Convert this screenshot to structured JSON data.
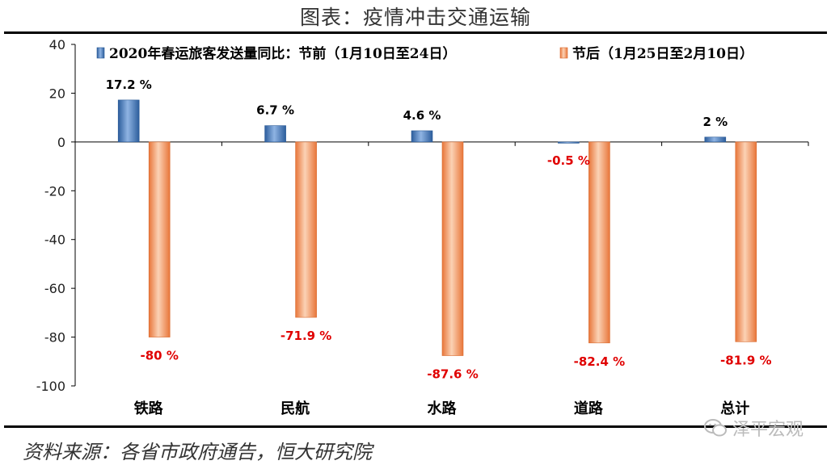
{
  "title": "图表：疫情冲击交通运输",
  "source": "资料来源：各省市政府通告，恒大研究院",
  "watermark": "泽平宏观",
  "colors": {
    "pre": "#4a7fbf",
    "post": "#f08a4b",
    "positive_label": "#000000",
    "negative_label": "#e00000"
  },
  "chart_data": {
    "type": "bar",
    "title": "",
    "xlabel": "",
    "ylabel": "",
    "ylim": [
      -100,
      40
    ],
    "yticks": [
      40,
      20,
      0,
      -20,
      -40,
      -60,
      -80,
      -100
    ],
    "legend_position": "top",
    "grid": false,
    "categories": [
      "铁路",
      "民航",
      "水路",
      "道路",
      "总计"
    ],
    "series": [
      {
        "name": "2020年春运旅客发送量同比：节前（1月10日至24日）",
        "values": [
          17.2,
          6.7,
          4.6,
          -0.5,
          2
        ],
        "labels": [
          "17.2 %",
          "6.7 %",
          "4.6 %",
          "-0.5 %",
          "2 %"
        ]
      },
      {
        "name": "节后（1月25日至2月10日）",
        "values": [
          -80,
          -71.9,
          -87.6,
          -82.4,
          -81.9
        ],
        "labels": [
          "-80 %",
          "-71.9 %",
          "-87.6 %",
          "-82.4 %",
          "-81.9 %"
        ]
      }
    ]
  }
}
